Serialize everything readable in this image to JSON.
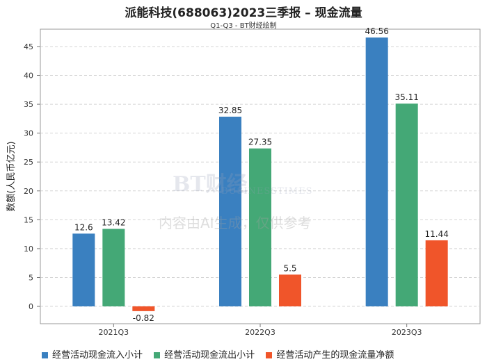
{
  "chart_data": {
    "type": "bar",
    "title": "派能科技(688063)2023三季报 – 现金流量",
    "subtitle": "Q1-Q3 - BT财经绘制",
    "ylabel": "数额(人民币亿元)",
    "ylim": [
      -3,
      48
    ],
    "yticks": [
      0,
      5,
      10,
      15,
      20,
      25,
      30,
      35,
      40,
      45
    ],
    "categories": [
      "2021Q3",
      "2022Q3",
      "2023Q3"
    ],
    "series": [
      {
        "name": "经营活动现金流入小计",
        "color": "#3a80c0",
        "values": [
          12.6,
          32.85,
          46.56
        ],
        "labels": [
          "12.6",
          "32.85",
          "46.56"
        ]
      },
      {
        "name": "经营活动现金流出小计",
        "color": "#44a876",
        "values": [
          13.42,
          27.35,
          35.11
        ],
        "labels": [
          "13.42",
          "27.35",
          "35.11"
        ]
      },
      {
        "name": "经营活动产生的现金流量净额",
        "color": "#f0552a",
        "values": [
          -0.82,
          5.5,
          11.44
        ],
        "labels": [
          "-0.82",
          "5.5",
          "11.44"
        ]
      }
    ],
    "grid": true,
    "legend_position": "bottom"
  },
  "watermark": {
    "brand": "BT财经",
    "brand_sub": "BUSINESSTIMES",
    "notice": "内容由AI生成，仅供参考"
  }
}
